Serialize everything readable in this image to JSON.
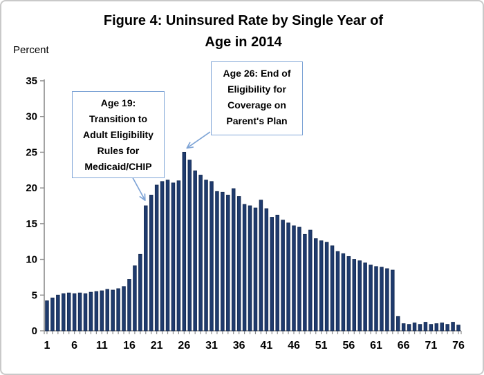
{
  "figure": {
    "title_lines": [
      "Figure 4: Uninsured Rate by Single Year of",
      "Age in 2014"
    ],
    "y_axis_unit_label": "Percent"
  },
  "annotations": [
    {
      "id": "age-19-note",
      "lines": [
        "Age 19:",
        "Transition to",
        "Adult Eligibility",
        "Rules for",
        "Medicaid/CHIP"
      ],
      "points_to_age": 19
    },
    {
      "id": "age-26-note",
      "lines": [
        "Age 26: End of",
        "Eligibility for",
        "Coverage on",
        "Parent's Plan"
      ],
      "points_to_age": 26
    }
  ],
  "chart_data": {
    "type": "bar",
    "title": "Figure 4: Uninsured Rate by Single Year of Age in 2014",
    "xlabel": "",
    "ylabel": "Percent",
    "ylim": [
      0,
      35
    ],
    "y_ticks": [
      0,
      5,
      10,
      15,
      20,
      25,
      30,
      35
    ],
    "x_tick_labels": [
      1,
      6,
      11,
      16,
      21,
      26,
      31,
      36,
      41,
      46,
      51,
      56,
      61,
      66,
      71,
      76
    ],
    "grid": false,
    "legend": "none",
    "ages": [
      1,
      2,
      3,
      4,
      5,
      6,
      7,
      8,
      9,
      10,
      11,
      12,
      13,
      14,
      15,
      16,
      17,
      18,
      19,
      20,
      21,
      22,
      23,
      24,
      25,
      26,
      27,
      28,
      29,
      30,
      31,
      32,
      33,
      34,
      35,
      36,
      37,
      38,
      39,
      40,
      41,
      42,
      43,
      44,
      45,
      46,
      47,
      48,
      49,
      50,
      51,
      52,
      53,
      54,
      55,
      56,
      57,
      58,
      59,
      60,
      61,
      62,
      63,
      64,
      65,
      66,
      67,
      68,
      69,
      70,
      71,
      72,
      73,
      74,
      75,
      76
    ],
    "values": [
      4.2,
      4.6,
      5.0,
      5.2,
      5.3,
      5.2,
      5.3,
      5.2,
      5.4,
      5.5,
      5.6,
      5.8,
      5.7,
      5.9,
      6.2,
      7.2,
      9.1,
      10.7,
      17.5,
      19.0,
      20.4,
      20.9,
      21.1,
      20.7,
      21.0,
      25.0,
      23.9,
      22.4,
      21.8,
      21.1,
      20.9,
      19.5,
      19.4,
      19.0,
      19.9,
      18.8,
      17.7,
      17.5,
      17.2,
      18.3,
      17.1,
      15.9,
      16.2,
      15.5,
      15.1,
      14.7,
      14.5,
      13.5,
      14.1,
      12.9,
      12.6,
      12.4,
      11.9,
      11.1,
      10.8,
      10.4,
      10.0,
      9.8,
      9.5,
      9.2,
      9.0,
      8.9,
      8.7,
      8.5,
      2.0,
      1.0,
      0.9,
      1.1,
      0.9,
      1.2,
      0.9,
      1.0,
      1.1,
      0.9,
      1.2,
      0.8
    ],
    "colors": {
      "bar_fill": "#1f3b6e",
      "bar_edge": "#152b52",
      "axis": "#8c8c8c",
      "tick_text": "#000000",
      "annotation_border": "#7ea4d6",
      "arrow": "#7ea4d6",
      "figure_border": "#c9c9c9"
    }
  }
}
